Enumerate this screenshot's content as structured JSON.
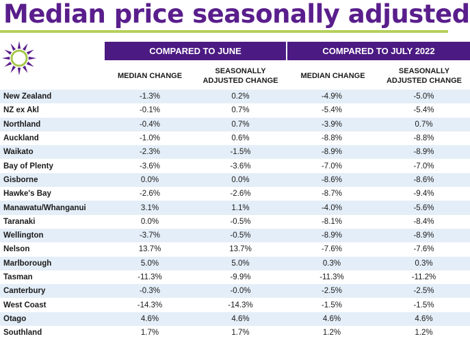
{
  "title": "Median price seasonally adjusted",
  "colors": {
    "title": "#5a1e8c",
    "accent_bar": "#b5cf5a",
    "header_bg": "#4b1a82",
    "row_alt": "#e4eef8",
    "logo_purple": "#5a1e8c",
    "logo_green": "#a6c84a"
  },
  "logo": {
    "icon": "sun-icon"
  },
  "header": {
    "group1": "COMPARED TO JUNE",
    "group2": "COMPARED TO JULY 2022",
    "col_median_change": "MEDIAN CHANGE",
    "col_seasonally_line1": "SEASONALLY",
    "col_seasonally_line2": "ADJUSTED CHANGE"
  },
  "rows": [
    {
      "region": "New Zealand",
      "june_median": "-1.3%",
      "june_sa": "0.2%",
      "july2022_median": "-4.9%",
      "july2022_sa": "-5.0%"
    },
    {
      "region": "NZ ex Akl",
      "june_median": "-0.1%",
      "june_sa": "0.7%",
      "july2022_median": "-5.4%",
      "july2022_sa": "-5.4%"
    },
    {
      "region": "Northland",
      "june_median": "-0.4%",
      "june_sa": "0.7%",
      "july2022_median": "-3.9%",
      "july2022_sa": "0.7%"
    },
    {
      "region": "Auckland",
      "june_median": "-1.0%",
      "june_sa": "0.6%",
      "july2022_median": "-8.8%",
      "july2022_sa": "-8.8%"
    },
    {
      "region": "Waikato",
      "june_median": "-2.3%",
      "june_sa": "-1.5%",
      "july2022_median": "-8.9%",
      "july2022_sa": "-8.9%"
    },
    {
      "region": "Bay of Plenty",
      "june_median": "-3.6%",
      "june_sa": "-3.6%",
      "july2022_median": "-7.0%",
      "july2022_sa": "-7.0%"
    },
    {
      "region": "Gisborne",
      "june_median": "0.0%",
      "june_sa": "0.0%",
      "july2022_median": "-8.6%",
      "july2022_sa": "-8.6%"
    },
    {
      "region": "Hawke's Bay",
      "june_median": "-2.6%",
      "june_sa": "-2.6%",
      "july2022_median": "-8.7%",
      "july2022_sa": "-9.4%"
    },
    {
      "region": "Manawatu/Whanganui",
      "june_median": "3.1%",
      "june_sa": "1.1%",
      "july2022_median": "-4.0%",
      "july2022_sa": "-5.6%"
    },
    {
      "region": "Taranaki",
      "june_median": "0.0%",
      "june_sa": "-0.5%",
      "july2022_median": "-8.1%",
      "july2022_sa": "-8.4%"
    },
    {
      "region": "Wellington",
      "june_median": "-3.7%",
      "june_sa": "-0.5%",
      "july2022_median": "-8.9%",
      "july2022_sa": "-8.9%"
    },
    {
      "region": "Nelson",
      "june_median": "13.7%",
      "june_sa": "13.7%",
      "july2022_median": "-7.6%",
      "july2022_sa": "-7.6%"
    },
    {
      "region": "Marlborough",
      "june_median": "5.0%",
      "june_sa": "5.0%",
      "july2022_median": "0.3%",
      "july2022_sa": "0.3%"
    },
    {
      "region": "Tasman",
      "june_median": "-11.3%",
      "june_sa": "-9.9%",
      "july2022_median": "-11.3%",
      "july2022_sa": "-11.2%"
    },
    {
      "region": "Canterbury",
      "june_median": "-0.3%",
      "june_sa": "-0.0%",
      "july2022_median": "-2.5%",
      "july2022_sa": "-2.5%"
    },
    {
      "region": "West Coast",
      "june_median": "-14.3%",
      "june_sa": "-14.3%",
      "july2022_median": "-1.5%",
      "july2022_sa": "-1.5%"
    },
    {
      "region": "Otago",
      "june_median": "4.6%",
      "june_sa": "4.6%",
      "july2022_median": "4.6%",
      "july2022_sa": "4.6%"
    },
    {
      "region": "Southland",
      "june_median": "1.7%",
      "june_sa": "1.7%",
      "july2022_median": "1.2%",
      "july2022_sa": "1.2%"
    }
  ]
}
